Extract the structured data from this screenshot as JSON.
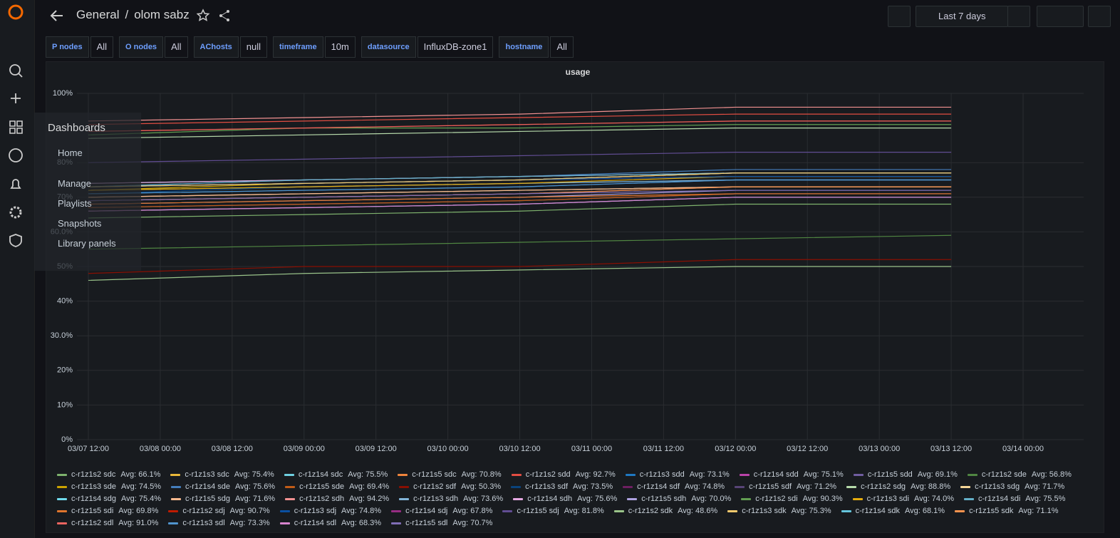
{
  "header": {
    "folder": "General",
    "separator": "/",
    "dashboard": "olom sabz",
    "time_range": "Last 7 days"
  },
  "variables": [
    {
      "label": "P nodes",
      "value": "All"
    },
    {
      "label": "O nodes",
      "value": "All"
    },
    {
      "label": "AChosts",
      "value": "null"
    },
    {
      "label": "timeframe",
      "value": "10m"
    },
    {
      "label": "datasource",
      "value": "InfluxDB-zone1"
    },
    {
      "label": "hostname",
      "value": "All"
    }
  ],
  "nav_menu": {
    "title": "Dashboards",
    "items": [
      "Home",
      "Manage",
      "Playlists",
      "Snapshots",
      "Library panels"
    ]
  },
  "chart_data": {
    "type": "line",
    "title": "usage",
    "xticks": [
      "03/07 12:00",
      "03/08 00:00",
      "03/08 12:00",
      "03/09 00:00",
      "03/09 12:00",
      "03/10 00:00",
      "03/10 12:00",
      "03/11 00:00",
      "03/11 12:00",
      "03/12 00:00",
      "03/12 12:00",
      "03/13 00:00",
      "03/13 12:00",
      "03/14 00:00"
    ],
    "x": [
      "03/07 12:00",
      "03/09 00:00",
      "03/10 12:00",
      "03/12 00:00",
      "03/13 12:00"
    ],
    "ylim": [
      0,
      100
    ],
    "yticks": [
      {
        "value": 0,
        "label": "0%"
      },
      {
        "value": 10,
        "label": "10%"
      },
      {
        "value": 20,
        "label": "20%"
      },
      {
        "value": 30,
        "label": "30.0%"
      },
      {
        "value": 40,
        "label": "40%"
      },
      {
        "value": 50,
        "label": "50%"
      },
      {
        "value": 60,
        "label": "60.0%"
      },
      {
        "value": 70,
        "label": "70%"
      },
      {
        "value": 80,
        "label": "80%"
      },
      {
        "value": 100,
        "label": "100%"
      }
    ],
    "grid": true,
    "series": [
      {
        "name": "c-r1z1s2 sdc",
        "stat": "Avg: 66.1%",
        "color": "#7EB26D",
        "values": [
          64,
          65,
          66,
          68,
          68
        ]
      },
      {
        "name": "c-r1z1s3 sdc",
        "stat": "Avg: 75.4%",
        "color": "#EAB839",
        "values": [
          73,
          74,
          75,
          77,
          77
        ]
      },
      {
        "name": "c-r1z1s4 sdc",
        "stat": "Avg: 75.5%",
        "color": "#6ED0E0",
        "values": [
          74,
          75,
          76,
          77,
          77
        ]
      },
      {
        "name": "c-r1z1s5 sdc",
        "stat": "Avg: 70.8%",
        "color": "#EF843C",
        "values": [
          69,
          70,
          71,
          73,
          73
        ]
      },
      {
        "name": "c-r1z1s2 sdd",
        "stat": "Avg: 92.7%",
        "color": "#E24D42",
        "values": [
          91,
          92,
          93,
          94,
          94
        ]
      },
      {
        "name": "c-r1z1s3 sdd",
        "stat": "Avg: 73.1%",
        "color": "#1F78C1",
        "values": [
          71,
          72,
          73,
          75,
          75
        ]
      },
      {
        "name": "c-r1z1s4 sdd",
        "stat": "Avg: 75.1%",
        "color": "#BA43A9",
        "values": [
          73,
          74,
          75,
          77,
          77
        ]
      },
      {
        "name": "c-r1z1s5 sdd",
        "stat": "Avg: 69.1%",
        "color": "#705DA0",
        "values": [
          67,
          68,
          69,
          71,
          71
        ]
      },
      {
        "name": "c-r1z1s2 sde",
        "stat": "Avg: 56.8%",
        "color": "#508642",
        "values": [
          55,
          56,
          57,
          58,
          59
        ]
      },
      {
        "name": "c-r1z1s3 sde",
        "stat": "Avg: 74.5%",
        "color": "#CCA300",
        "values": [
          72,
          74,
          75,
          76,
          76
        ]
      },
      {
        "name": "c-r1z1s4 sde",
        "stat": "Avg: 75.6%",
        "color": "#447EBC",
        "values": [
          73,
          75,
          76,
          78,
          78
        ]
      },
      {
        "name": "c-r1z1s5 sde",
        "stat": "Avg: 69.4%",
        "color": "#C15C17",
        "values": [
          67,
          68,
          69,
          71,
          71
        ]
      },
      {
        "name": "c-r1z1s2 sdf",
        "stat": "Avg: 50.3%",
        "color": "#890F02",
        "values": [
          48,
          50,
          50,
          52,
          52
        ]
      },
      {
        "name": "c-r1z1s3 sdf",
        "stat": "Avg: 73.5%",
        "color": "#0A437C",
        "values": [
          71,
          73,
          74,
          75,
          75
        ]
      },
      {
        "name": "c-r1z1s4 sdf",
        "stat": "Avg: 74.8%",
        "color": "#6D1F62",
        "values": [
          73,
          74,
          75,
          76,
          76
        ]
      },
      {
        "name": "c-r1z1s5 sdf",
        "stat": "Avg: 71.2%",
        "color": "#584477",
        "values": [
          69,
          70,
          71,
          73,
          73
        ]
      },
      {
        "name": "c-r1z1s2 sdg",
        "stat": "Avg: 88.8%",
        "color": "#B7DBAB",
        "values": [
          87,
          88,
          89,
          90,
          90
        ]
      },
      {
        "name": "c-r1z1s3 sdg",
        "stat": "Avg: 71.7%",
        "color": "#F4D598",
        "values": [
          70,
          71,
          72,
          73,
          73
        ]
      },
      {
        "name": "c-r1z1s4 sdg",
        "stat": "Avg: 75.4%",
        "color": "#70DBED",
        "values": [
          73,
          74,
          75,
          77,
          77
        ]
      },
      {
        "name": "c-r1z1s5 sdg",
        "stat": "Avg: 71.6%",
        "color": "#F9BA8F",
        "values": [
          70,
          71,
          72,
          73,
          73
        ]
      },
      {
        "name": "c-r1z1s2 sdh",
        "stat": "Avg: 94.2%",
        "color": "#F29191",
        "values": [
          92,
          93,
          94,
          96,
          96
        ]
      },
      {
        "name": "c-r1z1s3 sdh",
        "stat": "Avg: 73.6%",
        "color": "#82B5D8",
        "values": [
          72,
          73,
          74,
          75,
          75
        ]
      },
      {
        "name": "c-r1z1s4 sdh",
        "stat": "Avg: 75.6%",
        "color": "#E5A8E2",
        "values": [
          74,
          75,
          76,
          77,
          77
        ]
      },
      {
        "name": "c-r1z1s5 sdh",
        "stat": "Avg: 70.0%",
        "color": "#AEA2E0",
        "values": [
          68,
          69,
          70,
          72,
          72
        ]
      },
      {
        "name": "c-r1z1s2 sdi",
        "stat": "Avg: 90.3%",
        "color": "#629E51",
        "values": [
          88,
          90,
          90,
          91,
          91
        ]
      },
      {
        "name": "c-r1z1s3 sdi",
        "stat": "Avg: 74.0%",
        "color": "#E5AC0E",
        "values": [
          72,
          73,
          74,
          76,
          76
        ]
      },
      {
        "name": "c-r1z1s4 sdi",
        "stat": "Avg: 75.5%",
        "color": "#64B0C8",
        "values": [
          73,
          75,
          76,
          77,
          77
        ]
      },
      {
        "name": "c-r1z1s5 sdi",
        "stat": "Avg: 69.8%",
        "color": "#E0752D",
        "values": [
          68,
          69,
          70,
          71,
          71
        ]
      },
      {
        "name": "c-r1z1s2 sdj",
        "stat": "Avg: 90.7%",
        "color": "#BF1B00",
        "values": [
          89,
          90,
          91,
          92,
          92
        ]
      },
      {
        "name": "c-r1z1s3 sdj",
        "stat": "Avg: 74.8%",
        "color": "#0A50A1",
        "values": [
          73,
          74,
          75,
          76,
          76
        ]
      },
      {
        "name": "c-r1z1s4 sdj",
        "stat": "Avg: 67.8%",
        "color": "#962D82",
        "values": [
          66,
          67,
          68,
          70,
          70
        ]
      },
      {
        "name": "c-r1z1s5 sdj",
        "stat": "Avg: 81.8%",
        "color": "#614D93",
        "values": [
          80,
          81,
          82,
          83,
          83
        ]
      },
      {
        "name": "c-r1z1s2 sdk",
        "stat": "Avg: 48.6%",
        "color": "#9AC48A",
        "values": [
          46,
          48,
          49,
          50,
          50
        ]
      },
      {
        "name": "c-r1z1s3 sdk",
        "stat": "Avg: 75.3%",
        "color": "#F2C96D",
        "values": [
          73,
          74,
          75,
          77,
          77
        ]
      },
      {
        "name": "c-r1z1s4 sdk",
        "stat": "Avg: 68.1%",
        "color": "#65C5DB",
        "values": [
          66,
          67,
          68,
          70,
          70
        ]
      },
      {
        "name": "c-r1z1s5 sdk",
        "stat": "Avg: 71.1%",
        "color": "#F9934E",
        "values": [
          69,
          70,
          71,
          73,
          73
        ]
      },
      {
        "name": "c-r1z1s2 sdl",
        "stat": "Avg: 91.0%",
        "color": "#EA6460",
        "values": [
          89,
          90,
          91,
          92,
          92
        ]
      },
      {
        "name": "c-r1z1s3 sdl",
        "stat": "Avg: 73.3%",
        "color": "#5195CE",
        "values": [
          71,
          72,
          73,
          75,
          75
        ]
      },
      {
        "name": "c-r1z1s4 sdl",
        "stat": "Avg: 68.3%",
        "color": "#D683CE",
        "values": [
          66,
          67,
          68,
          70,
          70
        ]
      },
      {
        "name": "c-r1z1s5 sdl",
        "stat": "Avg: 70.7%",
        "color": "#806EB7",
        "values": [
          69,
          70,
          71,
          72,
          72
        ]
      }
    ]
  }
}
